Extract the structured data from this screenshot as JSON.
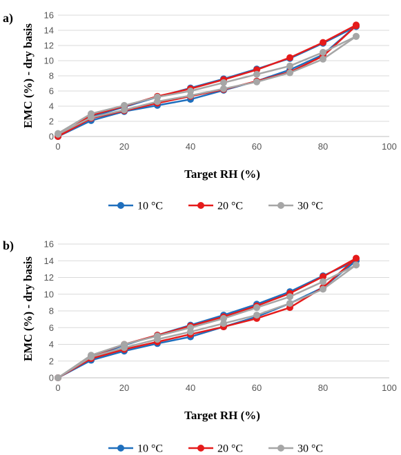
{
  "chart_data": [
    {
      "type": "line",
      "panel_label": "a)",
      "xlabel": "Target RH (%)",
      "ylabel": "EMC (%) - dry basis",
      "xlim": [
        0,
        100
      ],
      "ylim": [
        0,
        16
      ],
      "xticks": [
        0,
        20,
        40,
        60,
        80,
        100
      ],
      "yticks": [
        0,
        2,
        4,
        6,
        8,
        10,
        12,
        14,
        16
      ],
      "grid": "horizontal",
      "legend_position": "bottom",
      "series": [
        {
          "name": "10 °C",
          "color": "#1f6fbd",
          "lines": [
            {
              "x": [
                0,
                10,
                20,
                30,
                40,
                50,
                60,
                70,
                80,
                90
              ],
              "y": [
                0.0,
                2.6,
                3.9,
                5.2,
                6.4,
                7.6,
                8.9,
                10.3,
                12.3,
                14.5
              ]
            },
            {
              "x": [
                0,
                10,
                20,
                30,
                40,
                50,
                60,
                70,
                80,
                90
              ],
              "y": [
                0.0,
                2.1,
                3.3,
                4.1,
                4.9,
                6.1,
                7.3,
                8.8,
                10.8,
                14.6
              ]
            }
          ]
        },
        {
          "name": "20 °C",
          "color": "#e51b1b",
          "lines": [
            {
              "x": [
                0,
                10,
                20,
                30,
                40,
                50,
                60,
                70,
                80,
                90
              ],
              "y": [
                0.0,
                2.8,
                4.0,
                5.3,
                6.3,
                7.5,
                8.8,
                10.4,
                12.4,
                14.7
              ]
            },
            {
              "x": [
                0,
                10,
                20,
                30,
                40,
                50,
                60,
                70,
                80,
                90
              ],
              "y": [
                0.0,
                2.4,
                3.4,
                4.4,
                5.3,
                6.2,
                7.3,
                8.5,
                10.6,
                14.6
              ]
            }
          ]
        },
        {
          "name": "30 °C",
          "color": "#a6a6a6",
          "lines": [
            {
              "x": [
                0,
                10,
                20,
                30,
                40,
                50,
                60,
                70,
                80,
                90
              ],
              "y": [
                0.4,
                3.0,
                4.1,
                5.2,
                6.0,
                7.1,
                8.2,
                9.3,
                11.1,
                13.2
              ]
            },
            {
              "x": [
                0,
                10,
                20,
                30,
                40,
                50,
                60,
                70,
                80,
                90
              ],
              "y": [
                0.3,
                2.5,
                3.5,
                4.6,
                5.4,
                6.3,
                7.2,
                8.4,
                10.2,
                13.2
              ]
            }
          ]
        }
      ]
    },
    {
      "type": "line",
      "panel_label": "b)",
      "xlabel": "Target RH (%)",
      "ylabel": "EMC (%) - dry basis",
      "xlim": [
        0,
        100
      ],
      "ylim": [
        0,
        16
      ],
      "xticks": [
        0,
        20,
        40,
        60,
        80,
        100
      ],
      "yticks": [
        0,
        2,
        4,
        6,
        8,
        10,
        12,
        14,
        16
      ],
      "grid": "horizontal",
      "legend_position": "bottom",
      "series": [
        {
          "name": "10 °C",
          "color": "#1f6fbd",
          "lines": [
            {
              "x": [
                0,
                10,
                20,
                30,
                40,
                50,
                60,
                70,
                80,
                90
              ],
              "y": [
                0.0,
                2.5,
                3.9,
                5.1,
                6.3,
                7.5,
                8.8,
                10.3,
                12.2,
                14.0
              ]
            },
            {
              "x": [
                0,
                10,
                20,
                30,
                40,
                50,
                60,
                70,
                80,
                90
              ],
              "y": [
                0.0,
                2.1,
                3.2,
                4.1,
                4.9,
                6.1,
                7.3,
                8.9,
                10.8,
                14.0
              ]
            }
          ]
        },
        {
          "name": "20 °C",
          "color": "#e51b1b",
          "lines": [
            {
              "x": [
                0,
                10,
                20,
                30,
                40,
                50,
                60,
                70,
                80,
                90
              ],
              "y": [
                0.0,
                2.6,
                4.0,
                5.1,
                6.2,
                7.3,
                8.6,
                10.1,
                12.1,
                14.3
              ]
            },
            {
              "x": [
                0,
                10,
                20,
                30,
                40,
                50,
                60,
                70,
                80,
                90
              ],
              "y": [
                0.0,
                2.3,
                3.4,
                4.3,
                5.2,
                6.1,
                7.1,
                8.4,
                10.8,
                14.3
              ]
            }
          ]
        },
        {
          "name": "30 °C",
          "color": "#a6a6a6",
          "lines": [
            {
              "x": [
                0,
                10,
                20,
                30,
                40,
                50,
                60,
                70,
                80,
                90
              ],
              "y": [
                0.0,
                2.7,
                4.0,
                5.0,
                6.0,
                7.1,
                8.4,
                9.7,
                11.5,
                13.5
              ]
            },
            {
              "x": [
                0,
                10,
                20,
                30,
                40,
                50,
                60,
                70,
                80,
                90
              ],
              "y": [
                0.0,
                2.5,
                3.6,
                4.6,
                5.5,
                6.5,
                7.5,
                8.9,
                10.6,
                13.5
              ]
            }
          ]
        }
      ]
    }
  ]
}
